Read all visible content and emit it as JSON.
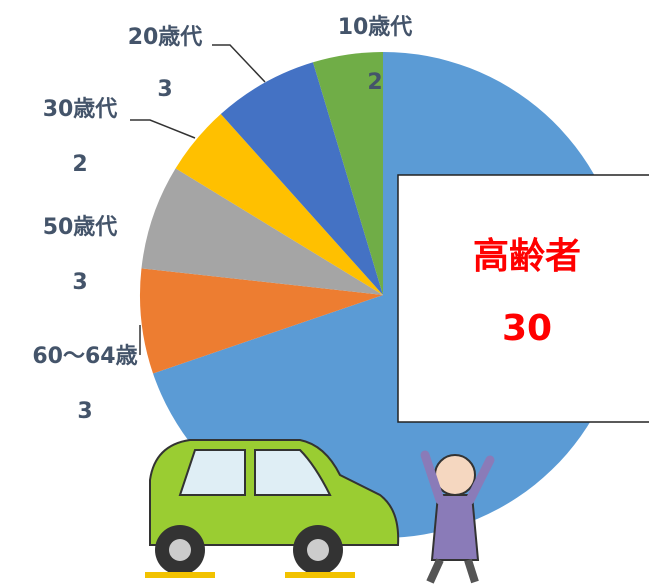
{
  "chart_data": {
    "type": "pie",
    "categories": [
      "高齢者",
      "60～64歳",
      "50歳代",
      "30歳代",
      "20歳代",
      "10歳代"
    ],
    "values": [
      30,
      3,
      3,
      2,
      3,
      2
    ],
    "colors": [
      "#5b9bd5",
      "#ed7d31",
      "#a5a5a5",
      "#ffc000",
      "#4472c4",
      "#70ad47"
    ]
  }
}
